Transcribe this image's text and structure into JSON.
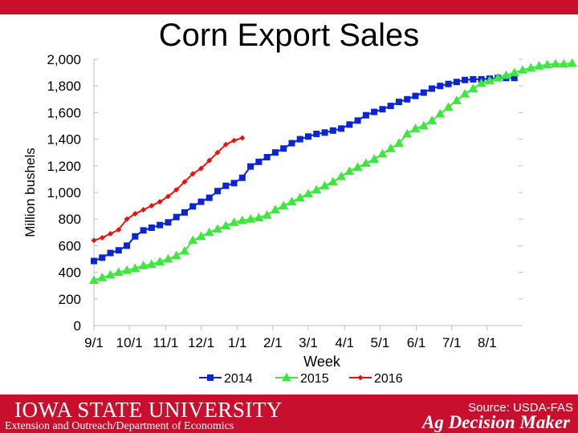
{
  "chart_data": {
    "type": "line",
    "title": "Corn Export Sales",
    "xlabel": "Week",
    "ylabel": "Million bushels",
    "ylim": [
      0,
      2000
    ],
    "yticks": [
      0,
      200,
      400,
      600,
      800,
      1000,
      1200,
      1400,
      1600,
      1800,
      2000
    ],
    "ytick_labels": [
      "0",
      "200",
      "400",
      "600",
      "800",
      "1,000",
      "1,200",
      "1,400",
      "1,600",
      "1,800",
      "2,000"
    ],
    "xlim": [
      0,
      52
    ],
    "xticks": [
      0,
      4.3,
      8.7,
      13,
      17.4,
      21.7,
      26,
      30.4,
      34.7,
      39.1,
      43.4,
      47.7
    ],
    "xtick_labels": [
      "9/1",
      "10/1",
      "11/1",
      "12/1",
      "1/1",
      "2/1",
      "3/1",
      "4/1",
      "5/1",
      "6/1",
      "7/1",
      "8/1"
    ],
    "legend_position": "bottom",
    "series": [
      {
        "name": "2014",
        "color": "#0a24d6",
        "marker": "square",
        "values": [
          485,
          510,
          545,
          565,
          600,
          670,
          715,
          735,
          755,
          775,
          815,
          850,
          895,
          930,
          960,
          1010,
          1050,
          1070,
          1110,
          1195,
          1230,
          1265,
          1300,
          1330,
          1370,
          1400,
          1420,
          1440,
          1450,
          1465,
          1480,
          1510,
          1540,
          1580,
          1605,
          1625,
          1650,
          1680,
          1700,
          1725,
          1750,
          1780,
          1800,
          1815,
          1830,
          1845,
          1850,
          1850,
          1855,
          1860,
          1860,
          1860
        ]
      },
      {
        "name": "2015",
        "color": "#3ce83c",
        "marker": "triangle",
        "values": [
          340,
          360,
          380,
          400,
          415,
          430,
          450,
          460,
          480,
          500,
          525,
          560,
          640,
          670,
          700,
          725,
          750,
          775,
          790,
          800,
          810,
          830,
          870,
          900,
          930,
          960,
          990,
          1020,
          1050,
          1080,
          1120,
          1160,
          1190,
          1220,
          1250,
          1290,
          1330,
          1370,
          1440,
          1480,
          1500,
          1540,
          1590,
          1640,
          1690,
          1740,
          1780,
          1820,
          1840,
          1860,
          1880,
          1900,
          1920,
          1935,
          1950,
          1960,
          1965,
          1965,
          1970
        ]
      },
      {
        "name": "2016",
        "color": "#e8120c",
        "marker": "diamond",
        "values": [
          640,
          660,
          690,
          720,
          800,
          840,
          870,
          900,
          930,
          970,
          1020,
          1080,
          1140,
          1180,
          1240,
          1300,
          1360,
          1390,
          1410
        ]
      }
    ]
  },
  "footer": {
    "university": "IOWA STATE UNIVERSITY",
    "department": "Extension and Outreach/Department of Economics",
    "source": "Source: USDA-FAS",
    "brand": "Ag Decision Maker"
  },
  "colors": {
    "brand_red": "#c8102e",
    "axis": "#c0c0c0"
  }
}
